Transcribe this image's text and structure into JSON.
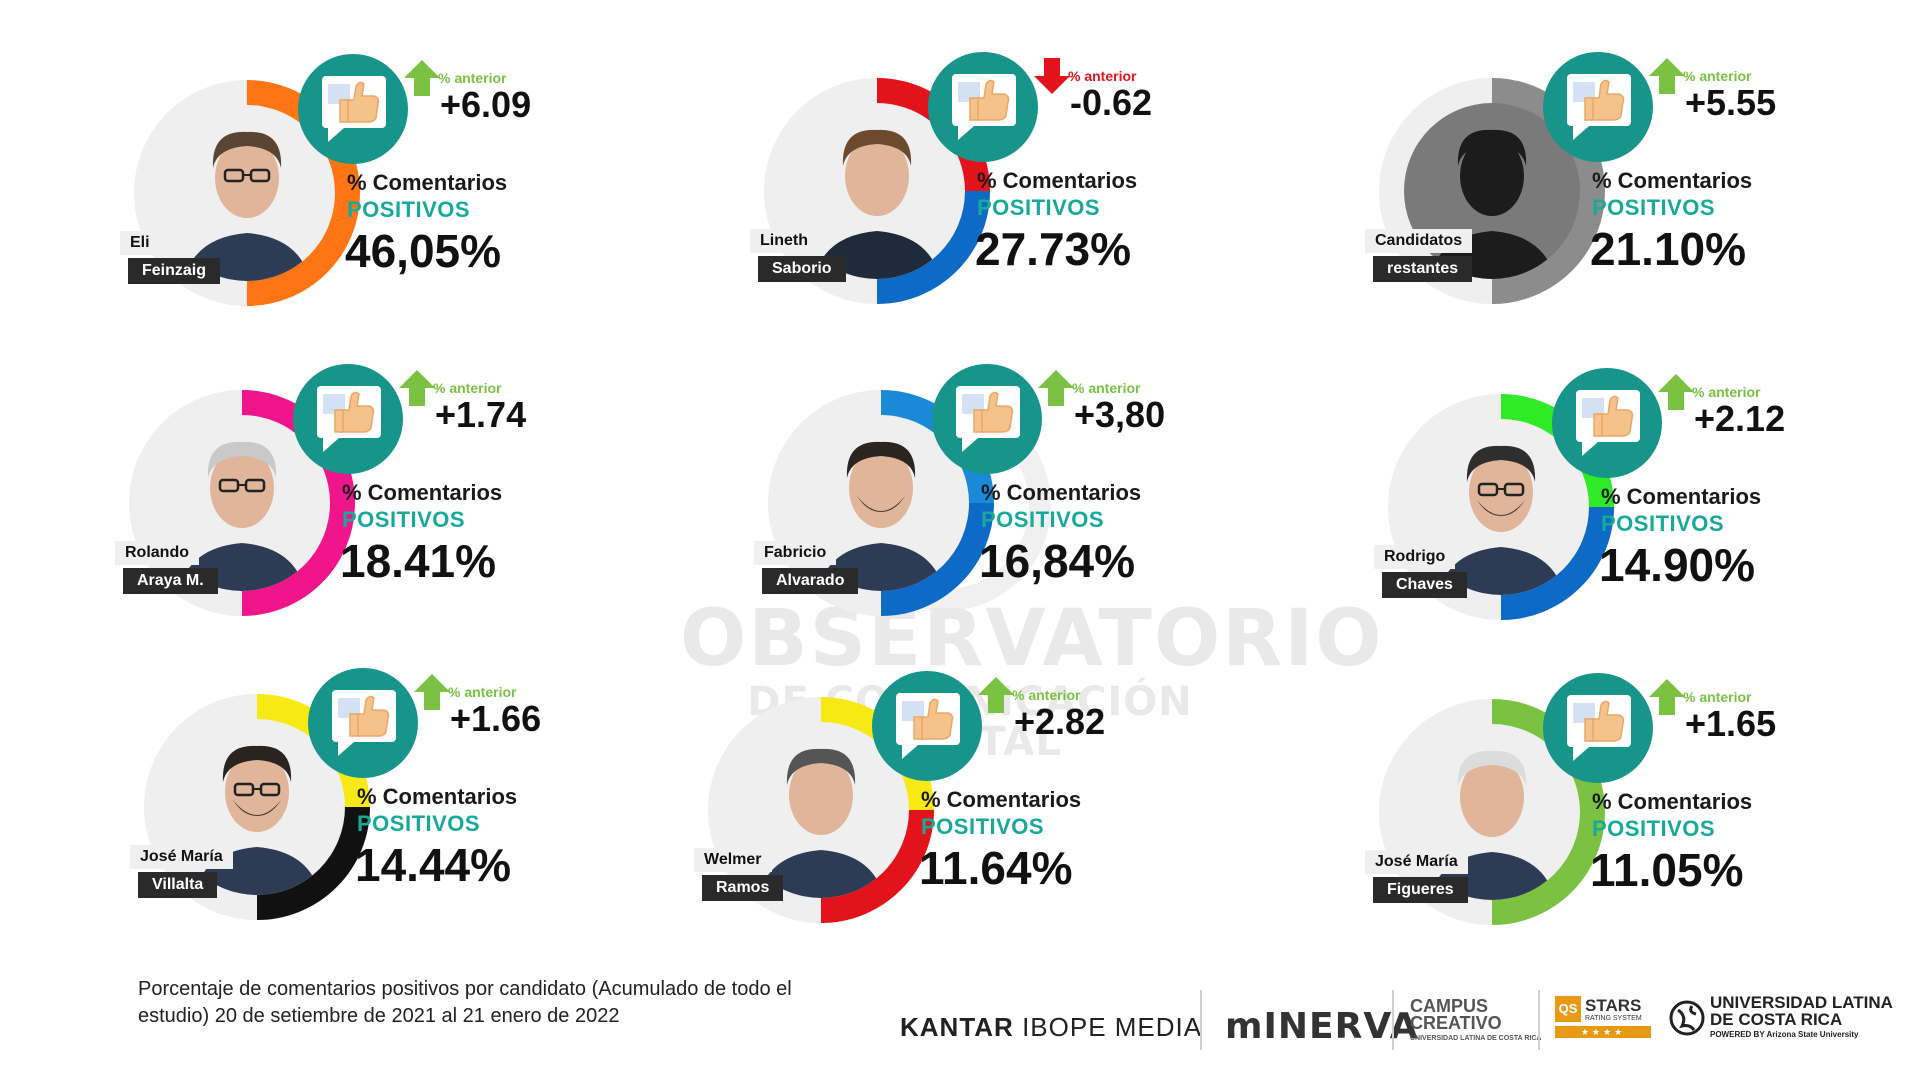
{
  "watermark": {
    "line1": "OBSERVATORIO",
    "line2": "DE COMUNICACIÓN DIGITAL"
  },
  "labels": {
    "prev": "% anterior",
    "comments": "% Comentarios",
    "positive": "POSITIVOS"
  },
  "colors": {
    "badge": "#17958b",
    "positive_text": "#17a99a",
    "arrow_up": "#7cc242",
    "arrow_down": "#e3131b",
    "prev_up_text": "#7cc242",
    "prev_down_text": "#e3131b"
  },
  "candidates": [
    {
      "first": "Eli",
      "last": "Feinzaig",
      "pct": "46,05%",
      "delta": "+6.09",
      "trend": "up",
      "ring_colors": [
        "#ff7413"
      ],
      "photo": "man-glasses-suit"
    },
    {
      "first": "Lineth",
      "last": "Saborio",
      "pct": "27.73%",
      "delta": "-0.62",
      "trend": "down",
      "ring_colors": [
        "#e3131b",
        "#0d6ac6"
      ],
      "photo": "woman-short-hair"
    },
    {
      "first": "Candidatos",
      "last": "restantes",
      "pct": "21.10%",
      "delta": "+5.55",
      "trend": "up",
      "ring_colors": [
        "#8c8c8c"
      ],
      "photo": "silhouette"
    },
    {
      "first": "Rolando",
      "last": "Araya M.",
      "pct": "18.41%",
      "delta": "+1.74",
      "trend": "up",
      "ring_colors": [
        "#f0158a"
      ],
      "photo": "older-man-glasses"
    },
    {
      "first": "Fabricio",
      "last": "Alvarado",
      "pct": "16,84%",
      "delta": "+3,80",
      "trend": "up",
      "ring_colors": [
        "#1a8ad8",
        "#0d6ac6"
      ],
      "photo": "man-beard-suit"
    },
    {
      "first": "Rodrigo",
      "last": "Chaves",
      "pct": "14.90%",
      "delta": "+2.12",
      "trend": "up",
      "ring_colors": [
        "#2fea26",
        "#0d6ac6"
      ],
      "photo": "man-glasses-beard"
    },
    {
      "first": "José María",
      "last": "Villalta",
      "pct": "14.44%",
      "delta": "+1.66",
      "trend": "up",
      "ring_colors": [
        "#f7ea14",
        "#111111"
      ],
      "photo": "man-glasses-dark"
    },
    {
      "first": "Welmer",
      "last": "Ramos",
      "pct": "11.64%",
      "delta": "+2.82",
      "trend": "up",
      "ring_colors": [
        "#f7ea14",
        "#e3131b"
      ],
      "photo": "man-smiling-suit"
    },
    {
      "first": "José María",
      "last": "Figueres",
      "pct": "11.05%",
      "delta": "+1.65",
      "trend": "up",
      "ring_colors": [
        "#7cc242"
      ],
      "photo": "older-man-gray"
    }
  ],
  "caption": "Porcentaje de comentarios positivos por candidato (Acumulado de todo el estudio) 20 de setiembre de 2021 al 21 enero de 2022",
  "logos": {
    "kantar_bold": "KANTAR",
    "kantar_rest": " IBOPE MEDIA",
    "minerva": "mINERVA",
    "campus_line1": "CAMPUS",
    "campus_line2": "CREATIVO",
    "campus_sub": "UNIVERSIDAD LATINA DE COSTA RICA",
    "qs_box": "QS",
    "qs_stars": "STARS",
    "qs_sub": "RATING SYSTEM",
    "qs_rating": "★★★★",
    "ulat_line1": "UNIVERSIDAD LATINA",
    "ulat_line2": "DE COSTA RICA",
    "ulat_sub": "POWERED BY Arizona State University"
  }
}
